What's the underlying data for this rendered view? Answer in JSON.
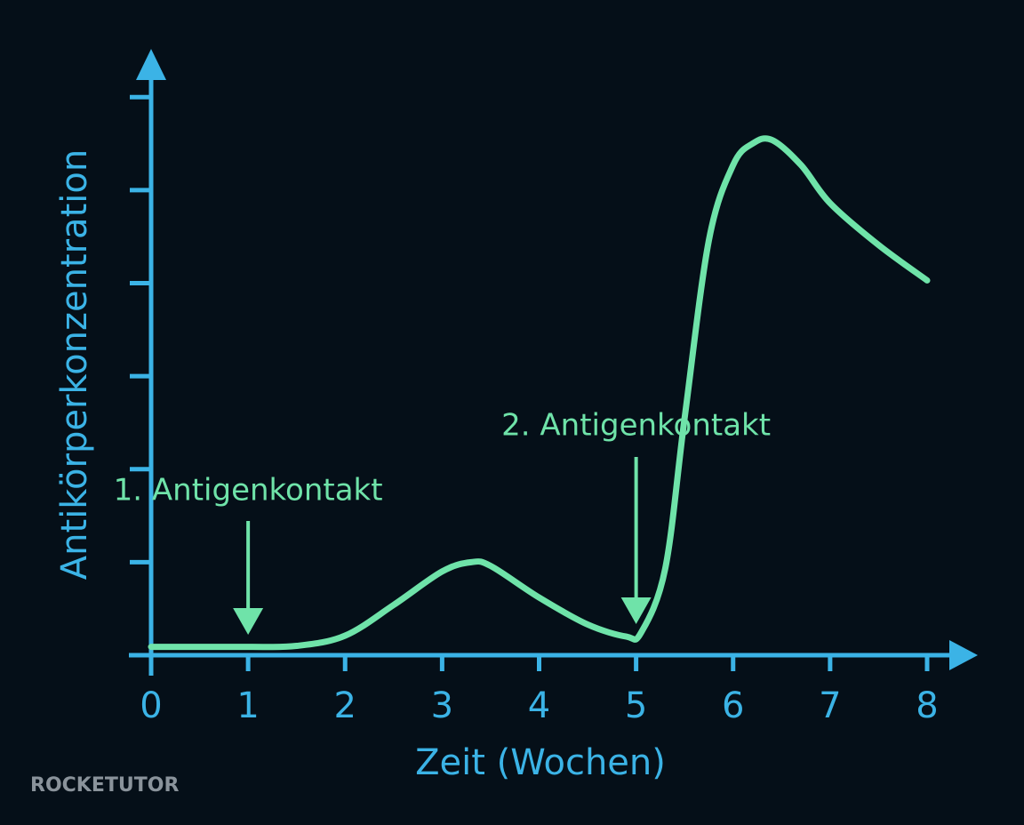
{
  "chart_data": {
    "type": "line",
    "x_label": "Zeit (Wochen)",
    "y_label": "Antikörperkonzentration",
    "x": [
      0,
      1,
      1.5,
      2,
      2.5,
      3,
      3.3,
      3.5,
      4,
      4.5,
      4.9,
      5.05,
      5.3,
      5.5,
      5.75,
      6,
      6.2,
      6.4,
      6.7,
      7,
      7.5,
      8
    ],
    "series": [
      {
        "color": "#6fe3a9",
        "values": [
          0.09,
          0.09,
          0.1,
          0.21,
          0.54,
          0.9,
          1.0,
          0.96,
          0.62,
          0.33,
          0.2,
          0.24,
          0.93,
          2.55,
          4.46,
          5.27,
          5.5,
          5.54,
          5.27,
          4.86,
          4.41,
          4.03
        ]
      }
    ],
    "xlim": [
      0,
      8
    ],
    "xticks": [
      0,
      1,
      2,
      3,
      4,
      5,
      6,
      7,
      8
    ],
    "ylim": [
      0,
      6.5
    ],
    "yticks": [
      0,
      1,
      2,
      3,
      4,
      5,
      6
    ],
    "axis_color": "#3bb3e6",
    "annotations": [
      {
        "text": "1. Antigenkontakt",
        "x": 1
      },
      {
        "text": "2. Antigenkontakt",
        "x": 5
      }
    ],
    "watermark": "ROCKETUTOR"
  }
}
